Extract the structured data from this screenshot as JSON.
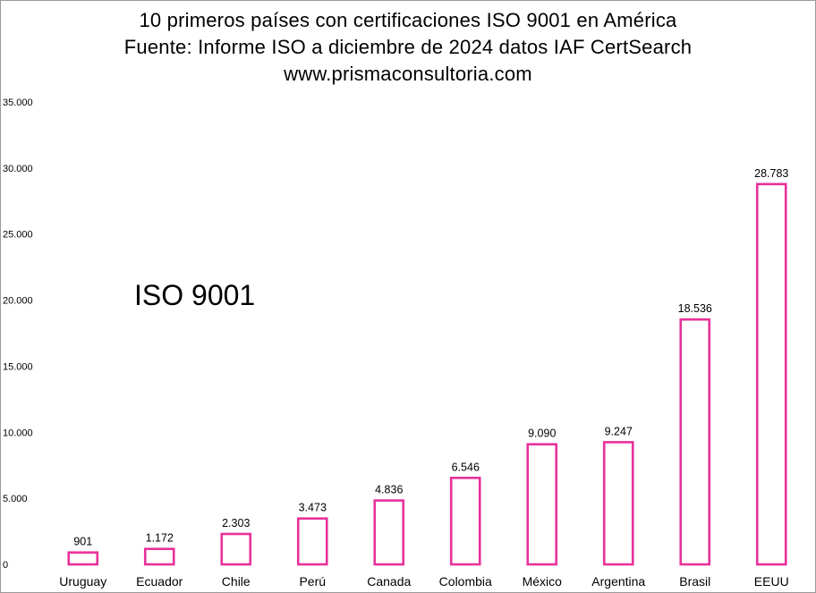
{
  "colors": {
    "bar_stroke": "#e8319a",
    "bar_fill": "#ffffff",
    "frame": "#9a9a9a"
  },
  "chart_data": {
    "type": "bar",
    "title_lines": [
      "10 primeros países con certificaciones ISO 9001 en América",
      "Fuente: Informe ISO  a diciembre de 2024 datos IAF CertSearch",
      "www.prismaconsultoria.com"
    ],
    "annotation": "ISO 9001",
    "categories": [
      "Uruguay",
      "Ecuador",
      "Chile",
      "Perú",
      "Canada",
      "Colombia",
      "México",
      "Argentina",
      "Brasil",
      "EEUU"
    ],
    "values": [
      901,
      1172,
      2303,
      3473,
      4836,
      6546,
      9090,
      9247,
      18536,
      28783
    ],
    "data_labels": [
      "901",
      "1.172",
      "2.303",
      "3.473",
      "4.836",
      "6.546",
      "9.090",
      "9.247",
      "18.536",
      "28.783"
    ],
    "y_ticks": [
      0,
      5000,
      10000,
      15000,
      20000,
      25000,
      30000,
      35000
    ],
    "y_tick_labels": [
      "0",
      "5.000",
      "10.000",
      "15.000",
      "20.000",
      "25.000",
      "30.000",
      "35.000"
    ],
    "ylim": [
      0,
      35000
    ],
    "xlabel": "",
    "ylabel": "",
    "grid": false,
    "legend": "none"
  }
}
